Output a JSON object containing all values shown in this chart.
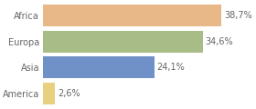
{
  "categories": [
    "America",
    "Asia",
    "Europa",
    "Africa"
  ],
  "values": [
    2.6,
    24.1,
    34.6,
    38.7
  ],
  "bar_colors": [
    "#e8d080",
    "#7090c8",
    "#a8bc88",
    "#e8b888"
  ],
  "labels": [
    "2,6%",
    "24,1%",
    "34,6%",
    "38,7%"
  ],
  "xlim": [
    0,
    45
  ],
  "background_color": "#ffffff",
  "bar_height": 0.85,
  "label_fontsize": 7.0,
  "tick_fontsize": 7.0,
  "grid_color": "#dddddd",
  "text_color": "#666666"
}
